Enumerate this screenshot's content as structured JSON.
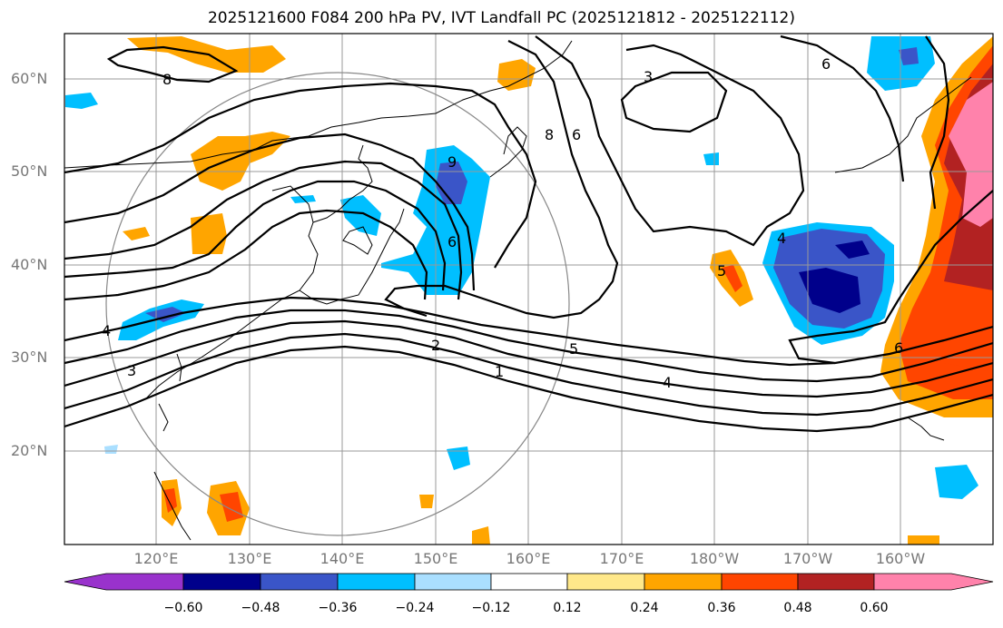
{
  "title": "2025121600 F084 200 hPa PV, IVT Landfall PC (2025121812 - 2025122112)",
  "lat_labels": [
    "60°N",
    "50°N",
    "40°N",
    "30°N",
    "20°N"
  ],
  "lon_labels": [
    "120°E",
    "130°E",
    "140°E",
    "150°E",
    "160°E",
    "170°E",
    "180°W",
    "170°W",
    "160°W"
  ],
  "colorbar": {
    "ticks": [
      "−0.60",
      "−0.48",
      "−0.36",
      "−0.24",
      "−0.12",
      "0.12",
      "0.24",
      "0.36",
      "0.48",
      "0.60"
    ],
    "colors": [
      "#9932cc",
      "#00008b",
      "#3a55c8",
      "#00bfff",
      "#aadfff",
      "#ffffff",
      "#ffe88a",
      "#ffa500",
      "#ff4500",
      "#b22222",
      "#ff82ab"
    ]
  },
  "contour_labels": [
    "8",
    "3",
    "6",
    "8",
    "9",
    "6",
    "4",
    "3",
    "2",
    "5",
    "1",
    "4",
    "4",
    "5",
    "6",
    "6"
  ]
}
